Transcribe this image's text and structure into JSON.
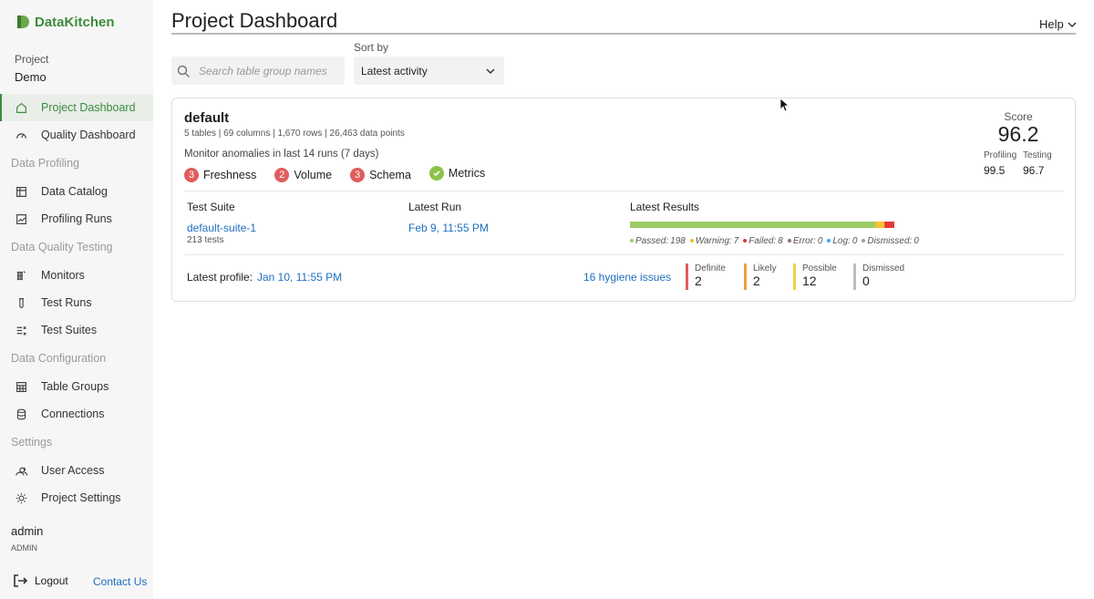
{
  "sidebar": {
    "brand": "DataKitchen",
    "project_label": "Project",
    "project": "Demo",
    "nav_top": [
      "Project Dashboard",
      "Quality Dashboard"
    ],
    "nav_groups": [
      {
        "title": "Data Profiling",
        "items": [
          "Data Catalog",
          "Profiling Runs"
        ]
      },
      {
        "title": "Data Quality Testing",
        "items": [
          "Monitors",
          "Test Runs",
          "Test Suites"
        ]
      },
      {
        "title": "Data Configuration",
        "items": [
          "Table Groups",
          "Connections"
        ]
      },
      {
        "title": "Settings",
        "items": [
          "User Access",
          "Project Settings"
        ]
      }
    ],
    "user": "admin",
    "role": "ADMIN",
    "logout": "Logout",
    "contact": "Contact Us"
  },
  "header": {
    "title": "Project Dashboard",
    "help": "Help"
  },
  "toolbar": {
    "search_placeholder": "Search table group names",
    "sort_label": "Sort by",
    "sort_value": "Latest activity"
  },
  "card": {
    "name": "default",
    "stats": "5 tables | 69 columns | 1,670 rows | 26,463 data points",
    "monitor_text": "Monitor anomalies in last 14 runs (7 days)",
    "monitors": [
      {
        "count": 3,
        "name": "Freshness"
      },
      {
        "count": 2,
        "name": "Volume"
      },
      {
        "count": 3,
        "name": "Schema"
      },
      {
        "count": null,
        "name": "Metrics"
      }
    ],
    "score": {
      "label": "Score",
      "value": 96.2,
      "profiling_label": "Profiling",
      "profiling": 99.5,
      "testing_label": "Testing",
      "testing": 96.7
    },
    "columns": [
      "Test Suite",
      "Latest Run",
      "Latest Results"
    ],
    "suite": {
      "name": "default-suite-1",
      "tests": "213 tests",
      "latest_run": "Feb 9, 11:55 PM"
    },
    "results": [
      {
        "label": "Passed:",
        "count": 198,
        "color": "#9ccc65"
      },
      {
        "label": "Warning:",
        "count": 7,
        "color": "#fbc02d"
      },
      {
        "label": "Failed:",
        "count": 8,
        "color": "#e53935"
      },
      {
        "label": "Error:",
        "count": 0,
        "color": "#8d6e63"
      },
      {
        "label": "Log:",
        "count": 0,
        "color": "#42a5f5"
      },
      {
        "label": "Dismissed:",
        "count": 0,
        "color": "#9e9e9e"
      }
    ],
    "profile": {
      "label": "Latest profile:",
      "date": "Jan 10, 11:55 PM",
      "hygiene": "16 hygiene issues"
    },
    "hygiene": [
      {
        "label": "Definite",
        "count": 2,
        "color": "#e05d5d"
      },
      {
        "label": "Likely",
        "count": 2,
        "color": "#f0a040"
      },
      {
        "label": "Possible",
        "count": 12,
        "color": "#f2d14c"
      },
      {
        "label": "Dismissed",
        "count": 0,
        "color": "#bdbdbd"
      }
    ]
  }
}
